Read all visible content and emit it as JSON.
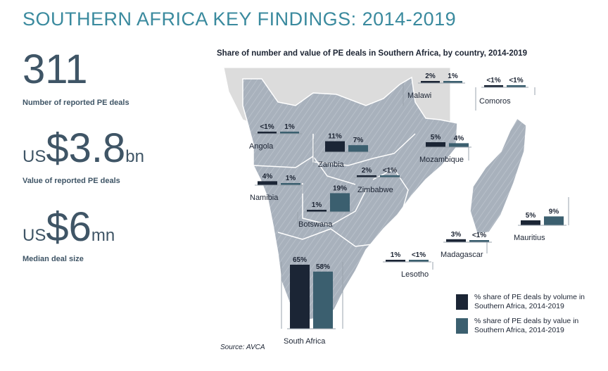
{
  "page_title": "SOUTHERN AFRICA KEY FINDINGS: 2014-2019",
  "stats": [
    {
      "prefix": "",
      "value": "311",
      "suffix": "",
      "label": "Number of reported PE deals"
    },
    {
      "prefix": "US",
      "value": "$3.8",
      "suffix": "bn",
      "label": "Value of reported PE deals"
    },
    {
      "prefix": "US",
      "value": "$6",
      "suffix": "mn",
      "label": "Median deal size"
    }
  ],
  "source": "Source: AVCA",
  "colors": {
    "volume": "#1b2535",
    "value": "#3b5f6f",
    "land": "#a7b0bb",
    "other_land": "#dcdcdc",
    "title": "#3a8a9e"
  },
  "chart_data": {
    "type": "bar",
    "title": "Share of number and value of PE deals in Southern Africa, by country, 2014-2019",
    "series": [
      {
        "name": "% share of PE deals by volume in Southern Africa, 2014-2019"
      },
      {
        "name": "% share of PE deals by value in Southern Africa, 2014-2019"
      }
    ],
    "countries": [
      {
        "name": "Malawi",
        "volume": 2,
        "value": 1,
        "volume_label": "2%",
        "value_label": "1%"
      },
      {
        "name": "Comoros",
        "volume": 0.5,
        "value": 0.5,
        "volume_label": "<1%",
        "value_label": "<1%"
      },
      {
        "name": "Angola",
        "volume": 0.5,
        "value": 1,
        "volume_label": "<1%",
        "value_label": "1%"
      },
      {
        "name": "Zambia",
        "volume": 11,
        "value": 7,
        "volume_label": "11%",
        "value_label": "7%"
      },
      {
        "name": "Mozambique",
        "volume": 5,
        "value": 4,
        "volume_label": "5%",
        "value_label": "4%"
      },
      {
        "name": "Zimbabwe",
        "volume": 2,
        "value": 0.5,
        "volume_label": "2%",
        "value_label": "<1%"
      },
      {
        "name": "Namibia",
        "volume": 4,
        "value": 1,
        "volume_label": "4%",
        "value_label": "1%"
      },
      {
        "name": "Botswana",
        "volume": 1,
        "value": 19,
        "volume_label": "1%",
        "value_label": "19%"
      },
      {
        "name": "Mauritius",
        "volume": 5,
        "value": 9,
        "volume_label": "5%",
        "value_label": "9%"
      },
      {
        "name": "Madagascar",
        "volume": 3,
        "value": 0.5,
        "volume_label": "3%",
        "value_label": "<1%"
      },
      {
        "name": "Lesotho",
        "volume": 1,
        "value": 0.5,
        "volume_label": "1%",
        "value_label": "<1%"
      },
      {
        "name": "South Africa",
        "volume": 65,
        "value": 58,
        "volume_label": "65%",
        "value_label": "58%"
      }
    ]
  }
}
